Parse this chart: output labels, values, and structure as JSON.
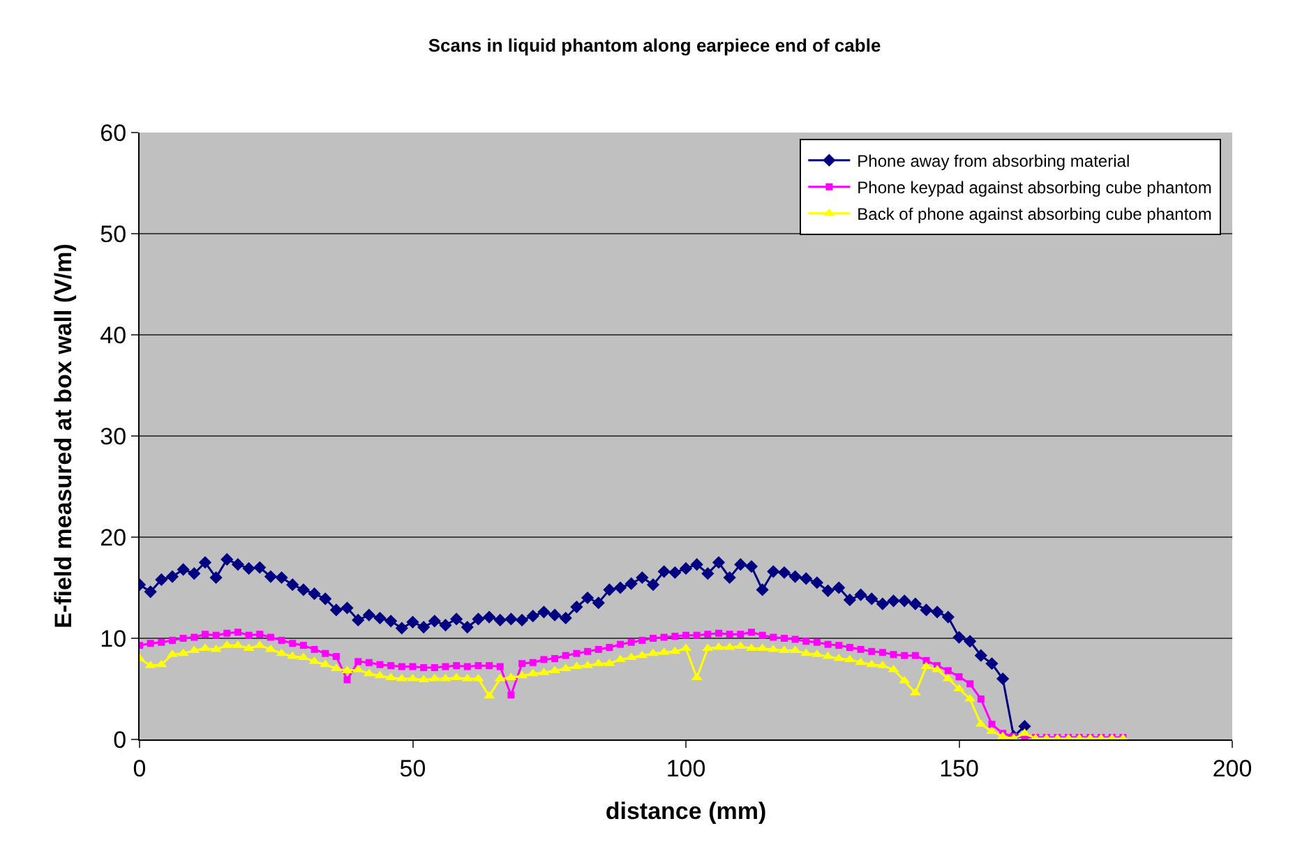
{
  "chart_data": {
    "type": "line",
    "title": "Scans in liquid phantom along earpiece end of cable",
    "xlabel": "distance (mm)",
    "ylabel": "E-field measured at box wall (V/m)",
    "x": [
      0,
      2,
      4,
      6,
      8,
      10,
      12,
      14,
      16,
      18,
      20,
      22,
      24,
      26,
      28,
      30,
      32,
      34,
      36,
      38,
      40,
      42,
      44,
      46,
      48,
      50,
      52,
      54,
      56,
      58,
      60,
      62,
      64,
      66,
      68,
      70,
      72,
      74,
      76,
      78,
      80,
      82,
      84,
      86,
      88,
      90,
      92,
      94,
      96,
      98,
      100,
      102,
      104,
      106,
      108,
      110,
      112,
      114,
      116,
      118,
      120,
      122,
      124,
      126,
      128,
      130,
      132,
      134,
      136,
      138,
      140,
      142,
      144,
      146,
      148,
      150,
      152,
      154,
      156,
      158,
      160,
      162,
      164,
      166,
      168,
      170,
      172,
      174,
      176,
      178,
      180
    ],
    "series": [
      {
        "name": "Phone away from absorbing material",
        "color": "#000080",
        "marker": "diamond",
        "values": [
          15.3,
          14.6,
          15.8,
          16.1,
          16.8,
          16.4,
          17.5,
          16.0,
          17.8,
          17.3,
          16.9,
          17.0,
          16.1,
          16.0,
          15.3,
          14.8,
          14.4,
          13.9,
          12.8,
          13.0,
          11.8,
          12.3,
          12.0,
          11.7,
          11.0,
          11.6,
          11.1,
          11.7,
          11.3,
          11.9,
          11.1,
          11.9,
          12.1,
          11.8,
          11.9,
          11.8,
          12.2,
          12.6,
          12.3,
          12.0,
          13.1,
          14.0,
          13.5,
          14.8,
          15.0,
          15.4,
          16.0,
          15.3,
          16.6,
          16.5,
          16.9,
          17.3,
          16.4,
          17.5,
          16.0,
          17.3,
          17.1,
          14.8,
          16.6,
          16.5,
          16.1,
          15.9,
          15.5,
          14.7,
          15.0,
          13.8,
          14.3,
          13.9,
          13.4,
          13.7,
          13.7,
          13.4,
          12.8,
          12.6,
          12.1,
          10.1,
          9.7,
          8.3,
          7.5,
          6.0,
          0.3,
          1.3,
          null,
          null,
          null,
          null,
          null,
          null,
          null,
          null,
          null
        ]
      },
      {
        "name": "Phone keypad against absorbing cube phantom",
        "color": "#ff00ff",
        "marker": "square",
        "values": [
          9.3,
          9.5,
          9.6,
          9.8,
          10.0,
          10.1,
          10.4,
          10.3,
          10.5,
          10.6,
          10.3,
          10.4,
          10.1,
          9.8,
          9.5,
          9.3,
          8.9,
          8.5,
          8.2,
          5.9,
          7.7,
          7.6,
          7.4,
          7.3,
          7.2,
          7.2,
          7.1,
          7.1,
          7.2,
          7.3,
          7.2,
          7.3,
          7.3,
          7.2,
          4.4,
          7.5,
          7.6,
          7.9,
          8.0,
          8.3,
          8.5,
          8.7,
          8.9,
          9.1,
          9.4,
          9.6,
          9.8,
          10.0,
          10.1,
          10.2,
          10.3,
          10.3,
          10.4,
          10.5,
          10.4,
          10.4,
          10.6,
          10.3,
          10.1,
          10.0,
          9.9,
          9.7,
          9.6,
          9.4,
          9.3,
          9.1,
          8.9,
          8.7,
          8.6,
          8.4,
          8.3,
          8.3,
          7.8,
          7.3,
          6.8,
          6.2,
          5.5,
          4.0,
          1.5,
          0.6,
          0.3,
          0.2,
          0.2,
          0.2,
          0.2,
          0.2,
          0.2,
          0.2,
          0.2,
          0.2,
          0.2
        ]
      },
      {
        "name": "Back of phone against absorbing cube phantom",
        "color": "#ffff00",
        "marker": "triangle",
        "values": [
          8.0,
          7.3,
          7.4,
          8.4,
          8.5,
          8.8,
          9.0,
          8.9,
          9.3,
          9.3,
          9.0,
          9.3,
          8.9,
          8.5,
          8.2,
          8.1,
          7.7,
          7.4,
          7.0,
          6.8,
          6.9,
          6.5,
          6.3,
          6.1,
          6.0,
          6.0,
          5.9,
          6.0,
          6.0,
          6.1,
          6.0,
          6.0,
          4.3,
          6.0,
          6.1,
          6.3,
          6.5,
          6.6,
          6.8,
          7.0,
          7.2,
          7.3,
          7.5,
          7.5,
          7.9,
          8.1,
          8.3,
          8.5,
          8.6,
          8.7,
          9.0,
          6.1,
          9.0,
          9.1,
          9.1,
          9.2,
          9.0,
          9.0,
          8.9,
          8.8,
          8.8,
          8.5,
          8.4,
          8.2,
          8.0,
          7.9,
          7.6,
          7.4,
          7.3,
          6.9,
          5.8,
          4.6,
          7.2,
          6.9,
          6.0,
          5.0,
          4.0,
          1.5,
          0.8,
          0.3,
          0.1,
          0.6,
          0.1,
          0.1,
          0.1,
          0.1,
          0.1,
          0.1,
          0.1,
          0.1,
          0.1
        ]
      }
    ],
    "xlim": [
      0,
      200
    ],
    "xticks": [
      0,
      50,
      100,
      150,
      200
    ],
    "ylim": [
      0,
      60
    ],
    "yticks": [
      0,
      10,
      20,
      30,
      40,
      50,
      60
    ],
    "grid": "y",
    "legend": "top right",
    "line_style": "solid"
  }
}
